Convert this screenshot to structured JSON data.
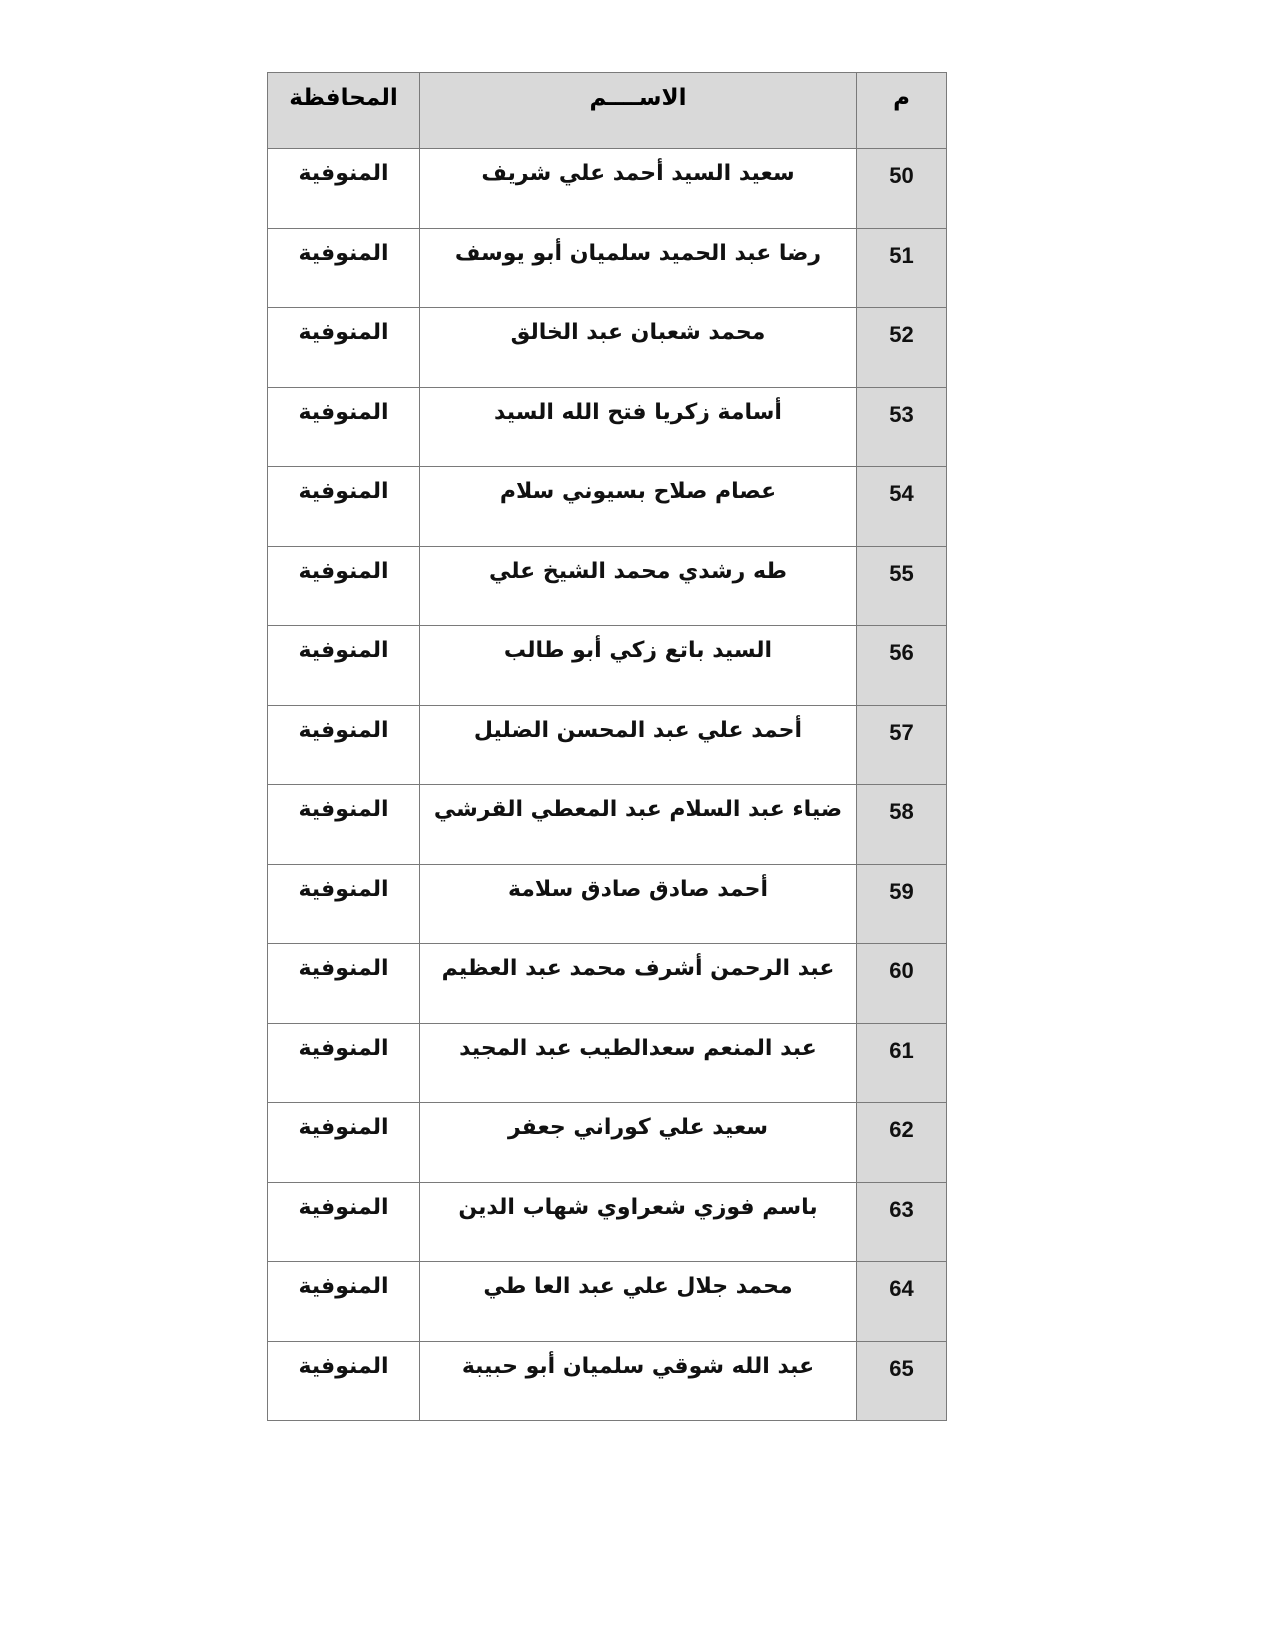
{
  "table": {
    "headers": {
      "number": "م",
      "name": "الاســــم",
      "governorate": "المحافظة"
    },
    "rows": [
      {
        "number": "50",
        "name": "سعيد السيد أحمد  علي شريف",
        "governorate": "المنوفية"
      },
      {
        "number": "51",
        "name": "رضا عبد الحميد سلميان أبو يوسف",
        "governorate": "المنوفية"
      },
      {
        "number": "52",
        "name": "محمد شعبان عبد الخالق",
        "governorate": "المنوفية"
      },
      {
        "number": "53",
        "name": "أسامة زكريا فتح الله السيد",
        "governorate": "المنوفية"
      },
      {
        "number": "54",
        "name": "عصام صلاح بسيوني سلام",
        "governorate": "المنوفية"
      },
      {
        "number": "55",
        "name": "طه رشدي محمد الشيخ علي",
        "governorate": "المنوفية"
      },
      {
        "number": "56",
        "name": "السيد باتع زكي أبو طالب",
        "governorate": "المنوفية"
      },
      {
        "number": "57",
        "name": "أحمد  علي عبد المحسن الضليل",
        "governorate": "المنوفية"
      },
      {
        "number": "58",
        "name": "ضياء عبد السلام عبد المعطي القرشي",
        "governorate": "المنوفية"
      },
      {
        "number": "59",
        "name": "أحمد  صادق صادق سلامة",
        "governorate": "المنوفية"
      },
      {
        "number": "60",
        "name": "عبد الرحمن أشرف  محمد عبد العظيم",
        "governorate": "المنوفية"
      },
      {
        "number": "61",
        "name": "عبد المنعم سعدالطيب عبد المجيد",
        "governorate": "المنوفية"
      },
      {
        "number": "62",
        "name": "سعيد علي كوراني جعفر",
        "governorate": "المنوفية"
      },
      {
        "number": "63",
        "name": "باسم فوزي شعراوي شهاب الدين",
        "governorate": "المنوفية"
      },
      {
        "number": "64",
        "name": "محمد جلال علي عبد  العا طي",
        "governorate": "المنوفية"
      },
      {
        "number": "65",
        "name": "عبد الله شوقي سلميان أبو حبيبة",
        "governorate": "المنوفية"
      }
    ]
  }
}
